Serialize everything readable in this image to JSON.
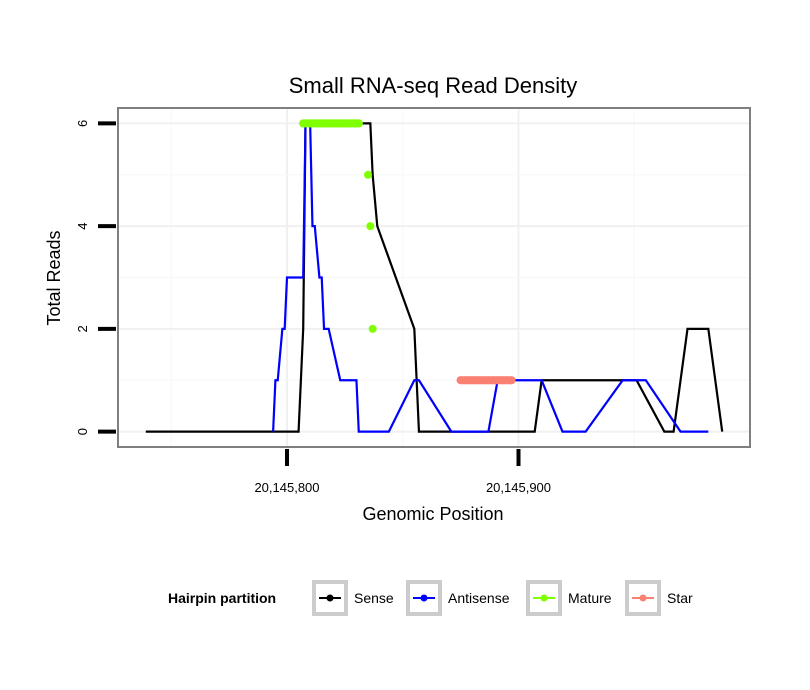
{
  "chart_data": {
    "type": "line",
    "title": "Small RNA-seq Read Density",
    "xlabel": "Genomic Position",
    "ylabel": "Total Reads",
    "xlim": [
      20145727,
      20146000
    ],
    "ylim": [
      -0.3,
      6.3
    ],
    "xticks": [
      20145800,
      20145900
    ],
    "xtick_labels": [
      "20,145,800",
      "20,145,900"
    ],
    "yticks": [
      0,
      2,
      4,
      6
    ],
    "ytick_labels": [
      "0",
      "2",
      "4",
      "6"
    ],
    "grid": true,
    "legend": {
      "title": "Hairpin partition",
      "position": "bottom",
      "entries": [
        "Sense",
        "Antisense",
        "Mature",
        "Star"
      ]
    },
    "series": [
      {
        "name": "Sense",
        "color": "#000000",
        "x": [
          20145739,
          20145805,
          20145807,
          20145808,
          20145812,
          20145814,
          20145815,
          20145815.5,
          20145816,
          20145819,
          20145820,
          20145822,
          20145824,
          20145826,
          20145828,
          20145829,
          20145834,
          20145835,
          20145836,
          20145837,
          20145839,
          20145855,
          20145857,
          20145859,
          20145860,
          20145864,
          20145865,
          20145866,
          20145869,
          20145870,
          20145886,
          20145888,
          20145891,
          20145893,
          20145894,
          20145907,
          20145910,
          20145920,
          20145936,
          20145941,
          20145947,
          20145949,
          20145951,
          20145963,
          20145967,
          20145973,
          20145975,
          20145982,
          20145988
        ],
        "y": [
          0,
          0,
          2,
          6,
          6,
          6,
          6,
          6,
          6,
          6,
          6,
          6,
          6,
          6,
          6,
          6,
          6,
          6,
          6,
          5,
          4,
          2,
          0,
          0,
          0,
          0,
          0,
          0,
          0,
          0,
          0,
          0,
          0,
          0,
          0,
          0,
          1,
          1,
          1,
          1,
          1,
          1,
          1,
          0,
          0,
          2,
          2,
          2,
          0
        ]
      },
      {
        "name": "Antisense",
        "color": "#0000ff",
        "x": [
          20145794,
          20145795,
          20145796,
          20145798,
          20145799,
          20145800,
          20145807,
          20145808,
          20145810,
          20145811,
          20145812,
          20145814,
          20145815,
          20145816,
          20145818,
          20145823,
          20145830,
          20145831,
          20145832,
          20145842,
          20145844,
          20145855,
          20145857,
          20145871,
          20145873,
          20145883,
          20145887,
          20145891,
          20145910,
          20145919,
          20145929,
          20145945,
          20145955,
          20145970,
          20145976,
          20145982
        ],
        "y": [
          0,
          1,
          1,
          2,
          2,
          3,
          3,
          6,
          6,
          4,
          4,
          3,
          3,
          2,
          2,
          1,
          1,
          0,
          0,
          0,
          0,
          1,
          1,
          0,
          0,
          0,
          0,
          1,
          1,
          0,
          0,
          1,
          1,
          0,
          0,
          0
        ]
      },
      {
        "name": "Mature",
        "color": "#7fff00",
        "x": [
          20145807,
          20145809,
          20145811,
          20145813,
          20145815,
          20145817,
          20145819,
          20145821,
          20145823,
          20145825,
          20145827,
          20145829,
          20145831,
          20145835,
          20145836,
          20145837
        ],
        "y": [
          6,
          6,
          6,
          6,
          6,
          6,
          6,
          6,
          6,
          6,
          6,
          6,
          6,
          5,
          4,
          2
        ]
      },
      {
        "name": "Star",
        "color": "#fa8072",
        "x": [
          20145875,
          20145877,
          20145879,
          20145881,
          20145883,
          20145885,
          20145887,
          20145889,
          20145891,
          20145893,
          20145895,
          20145897
        ],
        "y": [
          1,
          1,
          1,
          1,
          1,
          1,
          1,
          1,
          1,
          1,
          1,
          1
        ]
      }
    ]
  }
}
